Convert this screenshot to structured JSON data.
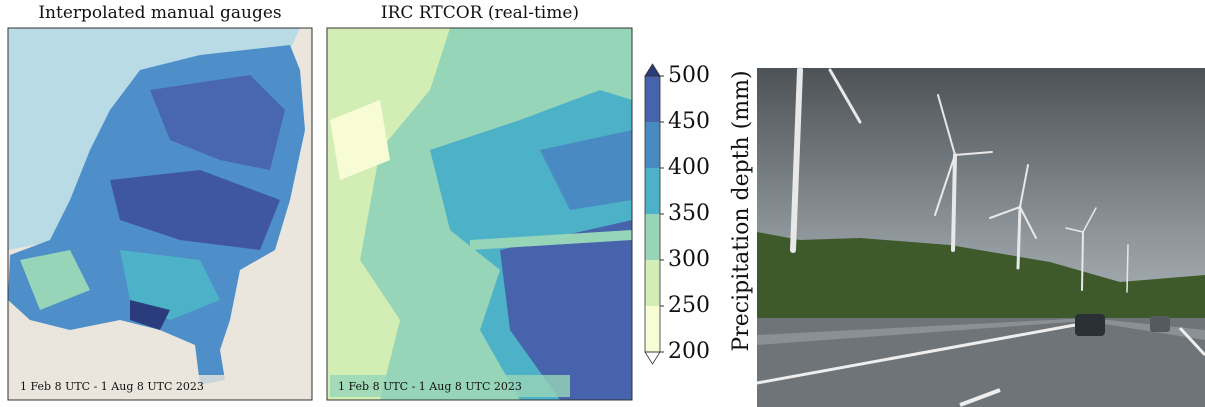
{
  "panels": [
    {
      "title": "Interpolated manual gauges",
      "caption": "1 Feb 8 UTC - 1 Aug 8 UTC 2023"
    },
    {
      "title": "IRC RTCOR (real-time)",
      "caption": "1 Feb 8 UTC - 1 Aug 8 UTC 2023"
    }
  ],
  "colorbar": {
    "label": "Precipitation depth (mm)",
    "lim": [
      200,
      500
    ],
    "ticks": [
      200,
      250,
      300,
      350,
      400,
      450,
      500
    ],
    "colors": [
      "#f8fcd4",
      "#d3eeb4",
      "#97d5b8",
      "#4db2c7",
      "#4a8ac3",
      "#4763ac"
    ],
    "over_color": "#2b3c7c",
    "under_color": "#ffffff"
  }
}
